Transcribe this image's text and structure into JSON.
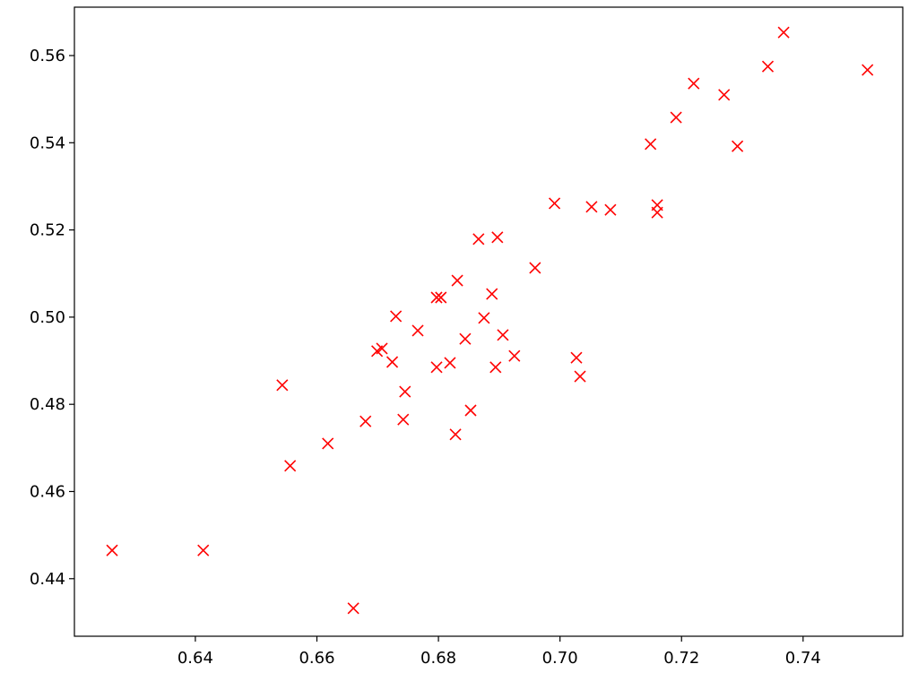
{
  "chart_data": {
    "type": "scatter",
    "marker": "x",
    "color": "red",
    "x": [
      0.6263,
      0.6413,
      0.666,
      0.6543,
      0.6556,
      0.6618,
      0.668,
      0.6699,
      0.6707,
      0.6724,
      0.673,
      0.6745,
      0.6742,
      0.6766,
      0.6797,
      0.6797,
      0.6804,
      0.6819,
      0.6828,
      0.6831,
      0.6844,
      0.6853,
      0.6866,
      0.6875,
      0.6888,
      0.6894,
      0.6897,
      0.6906,
      0.6925,
      0.6959,
      0.6991,
      0.7027,
      0.7033,
      0.7052,
      0.7083,
      0.7149,
      0.716,
      0.716,
      0.7191,
      0.722,
      0.727,
      0.7292,
      0.7342,
      0.7368,
      0.7506
    ],
    "y": [
      0.4465,
      0.4465,
      0.4332,
      0.4844,
      0.4659,
      0.471,
      0.4761,
      0.4922,
      0.4928,
      0.4897,
      0.5002,
      0.4829,
      0.4765,
      0.4969,
      0.4885,
      0.5045,
      0.5045,
      0.4895,
      0.4731,
      0.5084,
      0.495,
      0.4786,
      0.5179,
      0.4998,
      0.5053,
      0.4885,
      0.5183,
      0.4959,
      0.4911,
      0.5113,
      0.5261,
      0.4907,
      0.4864,
      0.5253,
      0.5246,
      0.5397,
      0.5257,
      0.524,
      0.5458,
      0.5536,
      0.551,
      0.5392,
      0.5575,
      0.5653,
      0.5567
    ],
    "xlim": [
      0.6201,
      0.7564
    ],
    "ylim": [
      0.4268,
      0.5711
    ],
    "xticks": [
      0.64,
      0.66,
      0.68,
      {
        "value": 0.7,
        "label": "0.70"
      },
      0.72,
      0.74
    ],
    "yticks": [
      0.44,
      0.46,
      0.48,
      {
        "value": 0.5,
        "label": "0.50"
      },
      0.52,
      0.54,
      0.56
    ]
  }
}
